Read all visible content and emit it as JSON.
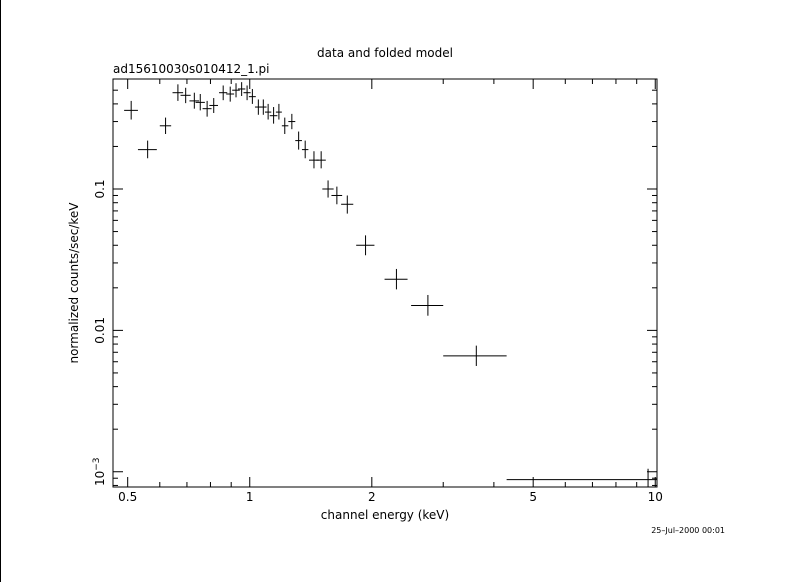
{
  "chart_data": {
    "type": "scatter",
    "title": "data and folded model",
    "subtitle": "ad15610030s010412_1.pi",
    "xlabel": "channel energy (keV)",
    "ylabel": "normalized counts/sec/keV",
    "xscale": "log",
    "yscale": "log",
    "xlim": [
      0.46,
      10.1
    ],
    "ylim": [
      0.00078,
      0.6
    ],
    "x_ticks": [
      {
        "value": 0.5,
        "label": "0.5"
      },
      {
        "value": 1,
        "label": "1"
      },
      {
        "value": 2,
        "label": "2"
      },
      {
        "value": 5,
        "label": "5"
      },
      {
        "value": 10,
        "label": "10"
      }
    ],
    "y_ticks": [
      {
        "value": 0.1,
        "label": "0.1"
      },
      {
        "value": 0.01,
        "label": "0.01"
      },
      {
        "value": 0.001,
        "label": "10",
        "sup": "−3"
      }
    ],
    "grid": false,
    "legend": "none",
    "series": [
      {
        "points": [
          {
            "x": 0.51,
            "xlo": 0.49,
            "xhi": 0.53,
            "y": 0.36,
            "ylo": 0.31,
            "yhi": 0.42
          },
          {
            "x": 0.56,
            "xlo": 0.53,
            "xhi": 0.59,
            "y": 0.19,
            "ylo": 0.165,
            "yhi": 0.22
          },
          {
            "x": 0.62,
            "xlo": 0.6,
            "xhi": 0.64,
            "y": 0.28,
            "ylo": 0.245,
            "yhi": 0.32
          },
          {
            "x": 0.665,
            "xlo": 0.645,
            "xhi": 0.685,
            "y": 0.48,
            "ylo": 0.42,
            "yhi": 0.55
          },
          {
            "x": 0.695,
            "xlo": 0.675,
            "xhi": 0.715,
            "y": 0.46,
            "ylo": 0.405,
            "yhi": 0.52
          },
          {
            "x": 0.73,
            "xlo": 0.71,
            "xhi": 0.75,
            "y": 0.42,
            "ylo": 0.37,
            "yhi": 0.48
          },
          {
            "x": 0.755,
            "xlo": 0.735,
            "xhi": 0.775,
            "y": 0.41,
            "ylo": 0.36,
            "yhi": 0.47
          },
          {
            "x": 0.785,
            "xlo": 0.765,
            "xhi": 0.805,
            "y": 0.37,
            "ylo": 0.325,
            "yhi": 0.42
          },
          {
            "x": 0.815,
            "xlo": 0.795,
            "xhi": 0.835,
            "y": 0.39,
            "ylo": 0.345,
            "yhi": 0.44
          },
          {
            "x": 0.86,
            "xlo": 0.84,
            "xhi": 0.88,
            "y": 0.48,
            "ylo": 0.425,
            "yhi": 0.54
          },
          {
            "x": 0.895,
            "xlo": 0.875,
            "xhi": 0.915,
            "y": 0.47,
            "ylo": 0.415,
            "yhi": 0.53
          },
          {
            "x": 0.925,
            "xlo": 0.905,
            "xhi": 0.945,
            "y": 0.5,
            "ylo": 0.445,
            "yhi": 0.56
          },
          {
            "x": 0.955,
            "xlo": 0.935,
            "xhi": 0.975,
            "y": 0.51,
            "ylo": 0.455,
            "yhi": 0.57
          },
          {
            "x": 0.985,
            "xlo": 0.965,
            "xhi": 1.005,
            "y": 0.48,
            "ylo": 0.425,
            "yhi": 0.54
          },
          {
            "x": 1.015,
            "xlo": 0.995,
            "xhi": 1.035,
            "y": 0.45,
            "ylo": 0.4,
            "yhi": 0.51
          },
          {
            "x": 1.05,
            "xlo": 1.03,
            "xhi": 1.07,
            "y": 0.38,
            "ylo": 0.335,
            "yhi": 0.43
          },
          {
            "x": 1.08,
            "xlo": 1.06,
            "xhi": 1.1,
            "y": 0.38,
            "ylo": 0.335,
            "yhi": 0.43
          },
          {
            "x": 1.11,
            "xlo": 1.09,
            "xhi": 1.13,
            "y": 0.35,
            "ylo": 0.31,
            "yhi": 0.4
          },
          {
            "x": 1.145,
            "xlo": 1.12,
            "xhi": 1.17,
            "y": 0.33,
            "ylo": 0.29,
            "yhi": 0.38
          },
          {
            "x": 1.18,
            "xlo": 1.16,
            "xhi": 1.2,
            "y": 0.35,
            "ylo": 0.31,
            "yhi": 0.4
          },
          {
            "x": 1.22,
            "xlo": 1.2,
            "xhi": 1.245,
            "y": 0.28,
            "ylo": 0.245,
            "yhi": 0.32
          },
          {
            "x": 1.27,
            "xlo": 1.245,
            "xhi": 1.295,
            "y": 0.3,
            "ylo": 0.265,
            "yhi": 0.34
          },
          {
            "x": 1.32,
            "xlo": 1.295,
            "xhi": 1.345,
            "y": 0.22,
            "ylo": 0.19,
            "yhi": 0.255
          },
          {
            "x": 1.37,
            "xlo": 1.345,
            "xhi": 1.395,
            "y": 0.19,
            "ylo": 0.165,
            "yhi": 0.22
          },
          {
            "x": 1.44,
            "xlo": 1.4,
            "xhi": 1.48,
            "y": 0.16,
            "ylo": 0.14,
            "yhi": 0.185
          },
          {
            "x": 1.5,
            "xlo": 1.46,
            "xhi": 1.54,
            "y": 0.16,
            "ylo": 0.14,
            "yhi": 0.185
          },
          {
            "x": 1.56,
            "xlo": 1.51,
            "xhi": 1.61,
            "y": 0.1,
            "ylo": 0.087,
            "yhi": 0.115
          },
          {
            "x": 1.64,
            "xlo": 1.59,
            "xhi": 1.69,
            "y": 0.09,
            "ylo": 0.078,
            "yhi": 0.104
          },
          {
            "x": 1.74,
            "xlo": 1.68,
            "xhi": 1.8,
            "y": 0.078,
            "ylo": 0.067,
            "yhi": 0.09
          },
          {
            "x": 1.93,
            "xlo": 1.83,
            "xhi": 2.03,
            "y": 0.04,
            "ylo": 0.034,
            "yhi": 0.047
          },
          {
            "x": 2.3,
            "xlo": 2.15,
            "xhi": 2.45,
            "y": 0.023,
            "ylo": 0.0195,
            "yhi": 0.0272
          },
          {
            "x": 2.75,
            "xlo": 2.5,
            "xhi": 3.0,
            "y": 0.015,
            "ylo": 0.0127,
            "yhi": 0.0178
          },
          {
            "x": 3.62,
            "xlo": 3.0,
            "xhi": 4.3,
            "y": 0.0066,
            "ylo": 0.0056,
            "yhi": 0.0078
          },
          {
            "x": 9.6,
            "xlo": 4.3,
            "xhi": 10.1,
            "y": 0.00088,
            "ylo": 0.00078,
            "yhi": 0.00105
          }
        ]
      }
    ]
  },
  "timestamp": "25–Jul–2000 00:01"
}
